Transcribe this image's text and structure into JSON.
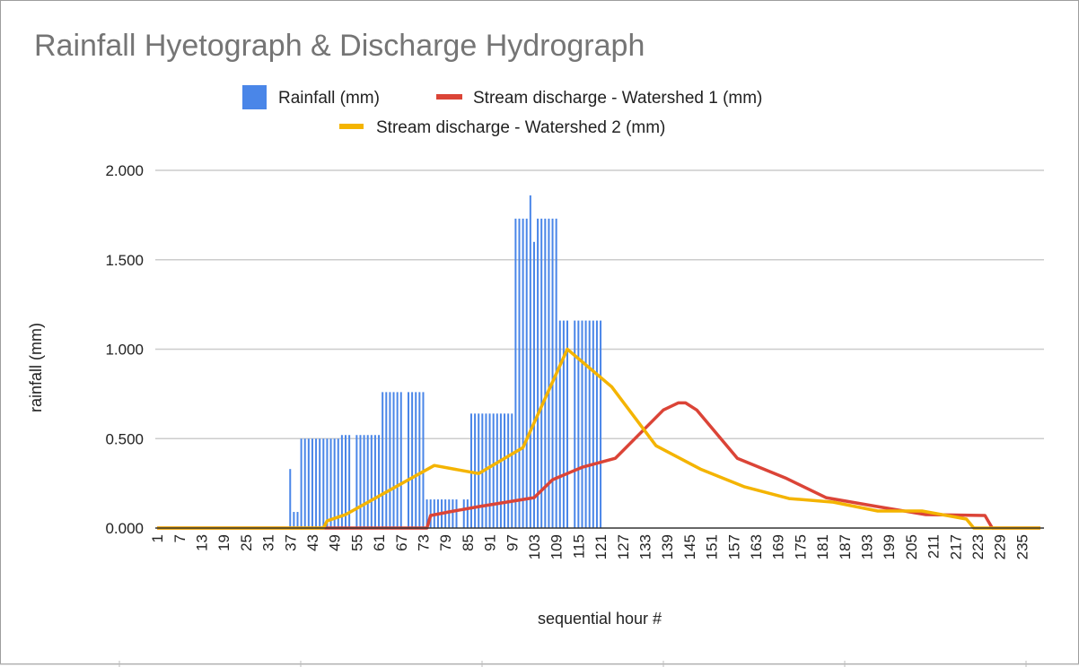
{
  "chart_data": {
    "type": "bar+line",
    "title": "Rainfall Hyetograph & Discharge Hydrograph",
    "xlabel": "sequential hour #",
    "ylabel": "rainfall (mm)",
    "ylim": [
      0,
      2
    ],
    "yticks": [
      "0.000",
      "0.500",
      "1.000",
      "1.500",
      "2.000"
    ],
    "ytick_values": [
      0,
      0.5,
      1,
      1.5,
      2
    ],
    "xlim": [
      1,
      240
    ],
    "xticks": [
      "1",
      "7",
      "13",
      "19",
      "25",
      "31",
      "37",
      "43",
      "49",
      "55",
      "61",
      "67",
      "73",
      "79",
      "85",
      "91",
      "97",
      "103",
      "109",
      "115",
      "121",
      "127",
      "133",
      "139",
      "145",
      "151",
      "157",
      "163",
      "169",
      "175",
      "181",
      "187",
      "193",
      "199",
      "205",
      "211",
      "217",
      "223",
      "229",
      "235"
    ],
    "grid": true,
    "legend_placement": "top",
    "colors": {
      "rainfall": "#4a86e8",
      "watershed1": "#db4437",
      "watershed2": "#f4b400",
      "grid": "#cccccc",
      "title": "#757575"
    },
    "series": [
      {
        "name": "Rainfall (mm)",
        "kind": "bar",
        "values": [
          0,
          0,
          0,
          0,
          0,
          0,
          0,
          0,
          0,
          0,
          0,
          0,
          0,
          0,
          0,
          0,
          0,
          0,
          0,
          0,
          0,
          0,
          0,
          0,
          0,
          0,
          0,
          0,
          0,
          0,
          0,
          0,
          0,
          0,
          0,
          0,
          0.33,
          0.09,
          0.09,
          0.5,
          0.5,
          0.5,
          0.5,
          0.5,
          0.5,
          0.5,
          0.5,
          0.5,
          0.5,
          0.5,
          0.52,
          0.52,
          0.52,
          0,
          0.52,
          0.52,
          0.52,
          0.52,
          0.52,
          0.52,
          0.52,
          0.76,
          0.76,
          0.76,
          0.76,
          0.76,
          0.76,
          0,
          0.76,
          0.76,
          0.76,
          0.76,
          0.76,
          0.16,
          0.16,
          0.16,
          0.16,
          0.16,
          0.16,
          0.16,
          0.16,
          0.16,
          0,
          0.16,
          0.16,
          0.64,
          0.64,
          0.64,
          0.64,
          0.64,
          0.64,
          0.64,
          0.64,
          0.64,
          0.64,
          0.64,
          0.64,
          1.73,
          1.73,
          1.73,
          1.73,
          1.86,
          1.6,
          1.73,
          1.73,
          1.73,
          1.73,
          1.73,
          1.73,
          1.16,
          1.16,
          1.16,
          0,
          1.16,
          1.16,
          1.16,
          1.16,
          1.16,
          1.16,
          1.16,
          1.16,
          0,
          0,
          0,
          0,
          0,
          0,
          0,
          0,
          0,
          0,
          0,
          0,
          0,
          0,
          0,
          0,
          0,
          0,
          0,
          0,
          0,
          0,
          0,
          0,
          0,
          0,
          0,
          0,
          0,
          0,
          0,
          0,
          0,
          0,
          0,
          0,
          0,
          0,
          0,
          0,
          0,
          0,
          0,
          0,
          0,
          0,
          0,
          0,
          0,
          0,
          0,
          0,
          0,
          0,
          0,
          0,
          0,
          0,
          0,
          0,
          0,
          0,
          0,
          0,
          0,
          0,
          0,
          0,
          0,
          0,
          0,
          0,
          0,
          0,
          0,
          0,
          0,
          0,
          0,
          0,
          0,
          0,
          0,
          0,
          0,
          0,
          0,
          0,
          0,
          0,
          0,
          0,
          0,
          0,
          0,
          0,
          0,
          0,
          0,
          0,
          0,
          0,
          0,
          0,
          0,
          0,
          0,
          0,
          0,
          0,
          0,
          0,
          0,
          0,
          0,
          0,
          0,
          0,
          0
        ]
      },
      {
        "name": "Stream discharge - Watershed 1 (mm)",
        "kind": "line",
        "points": [
          [
            1,
            0
          ],
          [
            74,
            0
          ],
          [
            75,
            0.07
          ],
          [
            80,
            0.09
          ],
          [
            88,
            0.12
          ],
          [
            103,
            0.17
          ],
          [
            108,
            0.27
          ],
          [
            116,
            0.34
          ],
          [
            125,
            0.39
          ],
          [
            138,
            0.66
          ],
          [
            142,
            0.7
          ],
          [
            144,
            0.7
          ],
          [
            147,
            0.66
          ],
          [
            158,
            0.39
          ],
          [
            171,
            0.28
          ],
          [
            182,
            0.17
          ],
          [
            196,
            0.12
          ],
          [
            209,
            0.075
          ],
          [
            225,
            0.07
          ],
          [
            227,
            0
          ],
          [
            240,
            0
          ]
        ]
      },
      {
        "name": "Stream discharge - Watershed 2 (mm)",
        "kind": "line",
        "points": [
          [
            1,
            0
          ],
          [
            46,
            0
          ],
          [
            47,
            0.04
          ],
          [
            52,
            0.075
          ],
          [
            76,
            0.35
          ],
          [
            88,
            0.305
          ],
          [
            100,
            0.45
          ],
          [
            112,
            1.0
          ],
          [
            124,
            0.79
          ],
          [
            136,
            0.46
          ],
          [
            148,
            0.33
          ],
          [
            160,
            0.23
          ],
          [
            172,
            0.165
          ],
          [
            184,
            0.145
          ],
          [
            196,
            0.095
          ],
          [
            208,
            0.095
          ],
          [
            220,
            0.05
          ],
          [
            222,
            0
          ],
          [
            240,
            0
          ]
        ]
      }
    ]
  }
}
